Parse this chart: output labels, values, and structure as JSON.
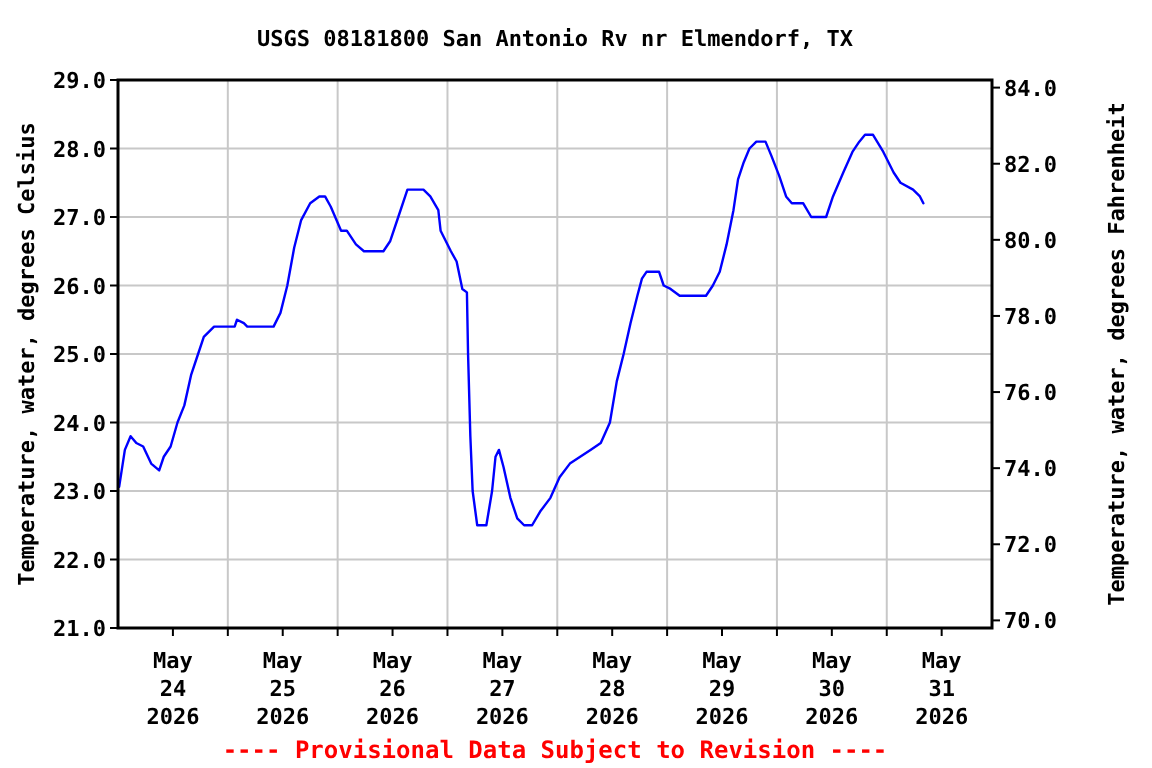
{
  "chart_data": {
    "type": "line",
    "title": "USGS 08181800 San Antonio Rv nr Elmendorf, TX",
    "ylabel": "Temperature, water, degrees Celsius",
    "y2label": "Temperature, water, degrees Fahrenheit",
    "annotations": [
      "---- Provisional Data Subject to Revision ----"
    ],
    "x": [
      "2026-05-24T00:15",
      "2026-05-24T01:30",
      "2026-05-24T02:45",
      "2026-05-24T04:00",
      "2026-05-24T05:30",
      "2026-05-24T07:15",
      "2026-05-24T09:00",
      "2026-05-24T10:00",
      "2026-05-24T11:30",
      "2026-05-24T13:00",
      "2026-05-24T14:30",
      "2026-05-24T16:00",
      "2026-05-24T17:30",
      "2026-05-24T18:45",
      "2026-05-24T21:00",
      "2026-05-25T01:30",
      "2026-05-25T02:00",
      "2026-05-25T03:30",
      "2026-05-25T04:15",
      "2026-05-25T10:00",
      "2026-05-25T11:30",
      "2026-05-25T13:00",
      "2026-05-25T14:30",
      "2026-05-25T16:00",
      "2026-05-25T18:00",
      "2026-05-25T20:00",
      "2026-05-25T21:15",
      "2026-05-25T22:30",
      "2026-05-26T00:45",
      "2026-05-26T02:00",
      "2026-05-26T04:00",
      "2026-05-26T05:45",
      "2026-05-26T10:00",
      "2026-05-26T11:30",
      "2026-05-26T13:15",
      "2026-05-26T15:15",
      "2026-05-26T18:45",
      "2026-05-26T20:15",
      "2026-05-26T22:00",
      "2026-05-26T22:30",
      "2026-05-27T00:45",
      "2026-05-27T02:00",
      "2026-05-27T03:15",
      "2026-05-27T04:15",
      "2026-05-27T04:30",
      "2026-05-27T05:00",
      "2026-05-27T05:30",
      "2026-05-27T06:30",
      "2026-05-27T08:30",
      "2026-05-27T09:45",
      "2026-05-27T10:30",
      "2026-05-27T11:15",
      "2026-05-27T12:15",
      "2026-05-27T13:45",
      "2026-05-27T15:15",
      "2026-05-27T16:45",
      "2026-05-27T18:30",
      "2026-05-27T20:15",
      "2026-05-27T22:30",
      "2026-05-28T00:30",
      "2026-05-28T02:45",
      "2026-05-28T05:00",
      "2026-05-28T07:15",
      "2026-05-28T09:30",
      "2026-05-28T11:30",
      "2026-05-28T13:00",
      "2026-05-28T14:30",
      "2026-05-28T16:00",
      "2026-05-28T17:30",
      "2026-05-28T18:30",
      "2026-05-28T19:30",
      "2026-05-28T22:15",
      "2026-05-28T23:15",
      "2026-05-29T00:45",
      "2026-05-29T02:45",
      "2026-05-29T08:30",
      "2026-05-29T10:00",
      "2026-05-29T11:30",
      "2026-05-29T13:00",
      "2026-05-29T14:30",
      "2026-05-29T15:30",
      "2026-05-29T16:45",
      "2026-05-29T18:00",
      "2026-05-29T19:30",
      "2026-05-29T21:30",
      "2026-05-29T22:45",
      "2026-05-30T00:30",
      "2026-05-30T02:00",
      "2026-05-30T03:15",
      "2026-05-30T05:45",
      "2026-05-30T07:30",
      "2026-05-30T10:45",
      "2026-05-30T12:15",
      "2026-05-30T14:30",
      "2026-05-30T16:30",
      "2026-05-30T18:00",
      "2026-05-30T19:15",
      "2026-05-30T21:00",
      "2026-05-30T23:15",
      "2026-05-31T01:30",
      "2026-05-31T03:00",
      "2026-05-31T05:45",
      "2026-05-31T07:15",
      "2026-05-31T08:00"
    ],
    "series": [
      {
        "color": "#0000ff",
        "values": [
          23.06,
          23.6,
          23.8,
          23.7,
          23.65,
          23.4,
          23.3,
          23.5,
          23.65,
          24.0,
          24.25,
          24.7,
          25.0,
          25.25,
          25.4,
          25.4,
          25.5,
          25.45,
          25.4,
          25.4,
          25.6,
          26.0,
          26.55,
          26.95,
          27.2,
          27.3,
          27.3,
          27.15,
          26.8,
          26.8,
          26.6,
          26.5,
          26.5,
          26.65,
          27.0,
          27.4,
          27.4,
          27.3,
          27.1,
          26.8,
          26.5,
          26.35,
          25.95,
          25.9,
          25.0,
          23.8,
          23.0,
          22.5,
          22.5,
          23.0,
          23.5,
          23.6,
          23.35,
          22.9,
          22.6,
          22.5,
          22.5,
          22.7,
          22.9,
          23.2,
          23.4,
          23.5,
          23.6,
          23.7,
          24.0,
          24.6,
          25.0,
          25.45,
          25.85,
          26.1,
          26.2,
          26.2,
          26.0,
          25.95,
          25.85,
          25.85,
          26.0,
          26.2,
          26.6,
          27.1,
          27.55,
          27.8,
          28.0,
          28.1,
          28.1,
          27.9,
          27.6,
          27.3,
          27.2,
          27.2,
          27.0,
          27.0,
          27.3,
          27.65,
          27.95,
          28.1,
          28.2,
          28.2,
          27.95,
          27.65,
          27.5,
          27.4,
          27.3,
          27.2
        ]
      }
    ],
    "xlim": [
      "2026-05-24T00:00",
      "2026-05-31T23:00"
    ],
    "xticks": [
      {
        "value": "2026-05-24T12:00",
        "label": "May\n24\n2026"
      },
      {
        "value": "2026-05-25T00:00",
        "label": null
      },
      {
        "value": "2026-05-25T12:00",
        "label": "May\n25\n2026"
      },
      {
        "value": "2026-05-26T00:00",
        "label": null
      },
      {
        "value": "2026-05-26T12:00",
        "label": "May\n26\n2026"
      },
      {
        "value": "2026-05-27T00:00",
        "label": null
      },
      {
        "value": "2026-05-27T12:00",
        "label": "May\n27\n2026"
      },
      {
        "value": "2026-05-28T00:00",
        "label": null
      },
      {
        "value": "2026-05-28T12:00",
        "label": "May\n28\n2026"
      },
      {
        "value": "2026-05-29T00:00",
        "label": null
      },
      {
        "value": "2026-05-29T12:00",
        "label": "May\n29\n2026"
      },
      {
        "value": "2026-05-30T00:00",
        "label": null
      },
      {
        "value": "2026-05-30T12:00",
        "label": "May\n30\n2026"
      },
      {
        "value": "2026-05-31T00:00",
        "label": null
      },
      {
        "value": "2026-05-31T12:00",
        "label": "May\n31\n2026"
      }
    ],
    "ylim": [
      21,
      29
    ],
    "yticks": [
      {
        "value": 21,
        "label": "21.0"
      },
      {
        "value": 22,
        "label": "22.0"
      },
      {
        "value": 23,
        "label": "23.0"
      },
      {
        "value": 24,
        "label": "24.0"
      },
      {
        "value": 25,
        "label": "25.0"
      },
      {
        "value": 26,
        "label": "26.0"
      },
      {
        "value": 27,
        "label": "27.0"
      },
      {
        "value": 28,
        "label": "28.0"
      },
      {
        "value": 29,
        "label": "29.0"
      }
    ],
    "y2lim": [
      69.8,
      84.2
    ],
    "y2ticks": [
      {
        "value": 70,
        "label": "70.0"
      },
      {
        "value": 72,
        "label": "72.0"
      },
      {
        "value": 74,
        "label": "74.0"
      },
      {
        "value": 76,
        "label": "76.0"
      },
      {
        "value": 78,
        "label": "78.0"
      },
      {
        "value": 80,
        "label": "80.0"
      },
      {
        "value": 82,
        "label": "82.0"
      },
      {
        "value": 84,
        "label": "84.0"
      }
    ],
    "grid": true,
    "marker": "none",
    "line_style": "solid"
  }
}
